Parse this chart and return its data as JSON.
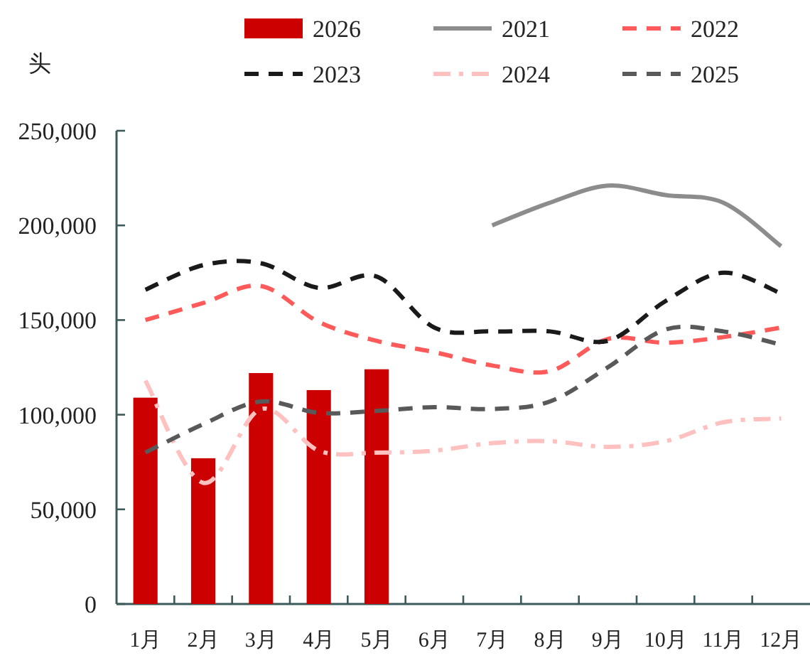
{
  "chart_data": {
    "type": "bar",
    "ylabel": "头",
    "categories": [
      "1月",
      "2月",
      "3月",
      "4月",
      "5月",
      "6月",
      "7月",
      "8月",
      "9月",
      "10月",
      "11月",
      "12月"
    ],
    "ylim": [
      0,
      250000
    ],
    "yticks": [
      {
        "value": 0,
        "label": "0"
      },
      {
        "value": 50000,
        "label": "50,000"
      },
      {
        "value": 100000,
        "label": "100,000"
      },
      {
        "value": 150000,
        "label": "150,000"
      },
      {
        "value": 200000,
        "label": "200,000"
      },
      {
        "value": 250000,
        "label": "250,000"
      }
    ],
    "legend": "top",
    "grid": false,
    "series": [
      {
        "name": "2026",
        "color": "#cc0000",
        "values": [
          109000,
          77000,
          122000,
          113000,
          124000,
          null,
          null,
          null,
          null,
          null,
          null,
          null
        ]
      },
      {
        "name": "2021",
        "type": "line",
        "line_style": "solid",
        "color": "#8c8c8c",
        "values": [
          null,
          null,
          null,
          null,
          null,
          null,
          200000,
          212000,
          221000,
          216000,
          212000,
          189000
        ]
      },
      {
        "name": "2022",
        "type": "line",
        "line_style": "dashed",
        "color": "#ff5a5a",
        "values": [
          150000,
          159000,
          168000,
          149000,
          139000,
          133000,
          126000,
          123000,
          140000,
          138000,
          141000,
          146000
        ]
      },
      {
        "name": "2023",
        "type": "line",
        "line_style": "dashed",
        "color": "#1a1a1a",
        "values": [
          166000,
          179000,
          180000,
          167000,
          173000,
          146000,
          144000,
          144000,
          139000,
          160000,
          175000,
          164000
        ]
      },
      {
        "name": "2024",
        "type": "line",
        "line_style": "dashdot",
        "color": "#ffc0c0",
        "values": [
          118000,
          64000,
          103000,
          81000,
          80000,
          81000,
          85000,
          86000,
          83000,
          86000,
          96000,
          98000
        ]
      },
      {
        "name": "2025",
        "type": "line",
        "line_style": "dashed",
        "color": "#595959",
        "values": [
          80000,
          95000,
          107000,
          101000,
          102000,
          104000,
          103000,
          107000,
          125000,
          145000,
          144000,
          137000
        ]
      }
    ]
  }
}
